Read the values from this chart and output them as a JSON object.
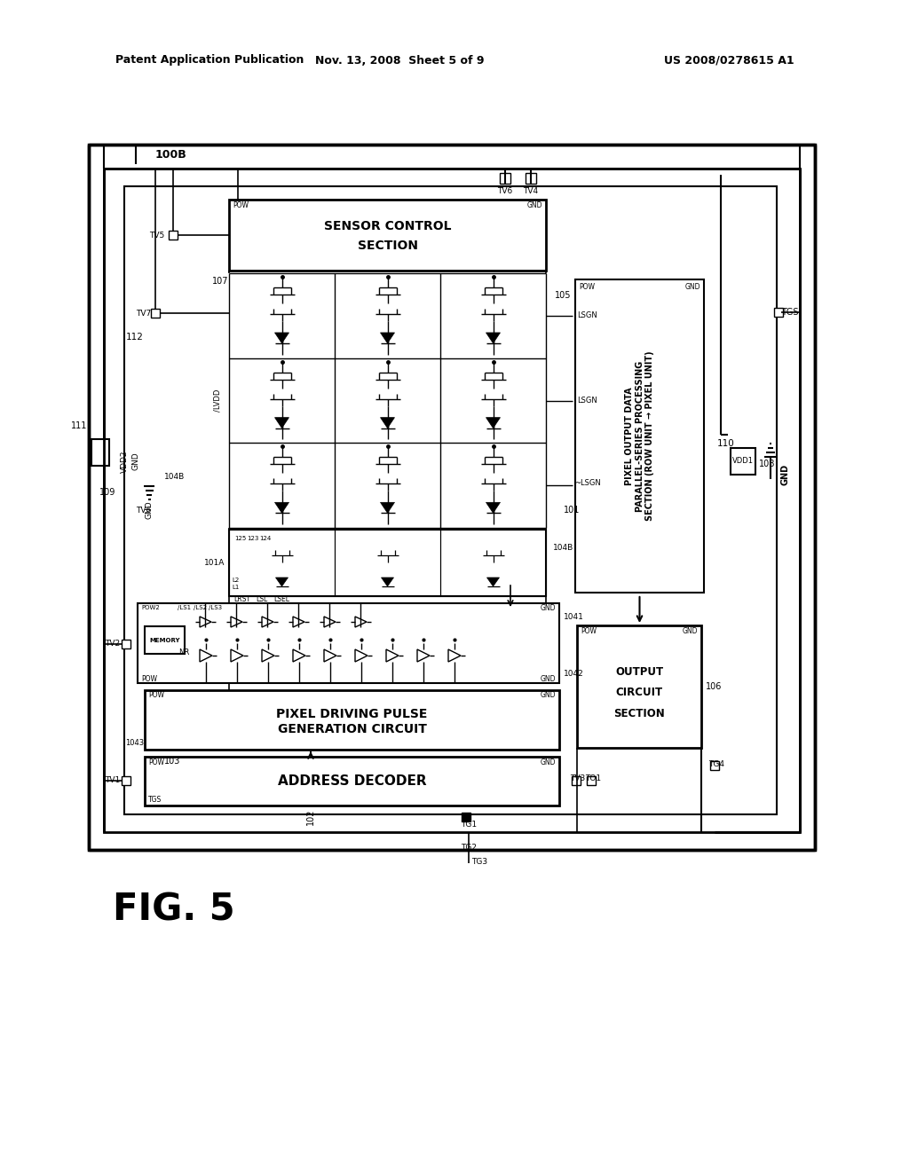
{
  "bg_color": "#ffffff",
  "header_left": "Patent Application Publication",
  "header_center": "Nov. 13, 2008  Sheet 5 of 9",
  "header_right": "US 2008/0278615 A1",
  "fig_label": "FIG. 5"
}
